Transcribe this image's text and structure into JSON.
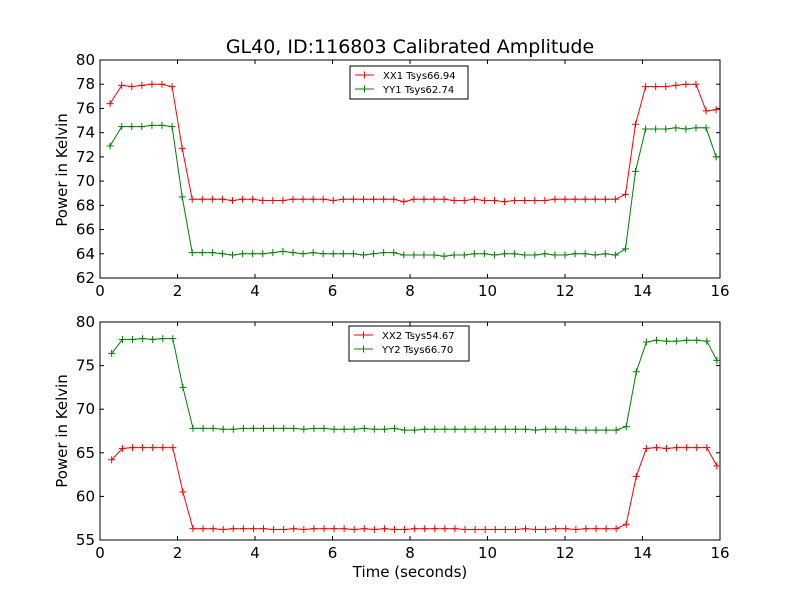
{
  "chart_data": [
    {
      "type": "line",
      "title": "GL40, ID:116803 Calibrated Amplitude",
      "xlabel": "",
      "ylabel": "Power in Kelvin",
      "xlim": [
        0,
        16
      ],
      "ylim": [
        62,
        80
      ],
      "xticks": [
        0,
        2,
        4,
        6,
        8,
        10,
        12,
        14,
        16
      ],
      "yticks": [
        62,
        64,
        66,
        68,
        70,
        72,
        74,
        76,
        78,
        80
      ],
      "grid": false,
      "legend": "top-center",
      "x": [
        0.26,
        0.56,
        0.82,
        1.08,
        1.34,
        1.6,
        1.86,
        2.12,
        2.38,
        2.64,
        2.9,
        3.16,
        3.42,
        3.68,
        3.94,
        4.2,
        4.46,
        4.72,
        4.98,
        5.24,
        5.5,
        5.76,
        6.02,
        6.28,
        6.54,
        6.8,
        7.06,
        7.32,
        7.58,
        7.84,
        8.1,
        8.36,
        8.62,
        8.88,
        9.14,
        9.4,
        9.66,
        9.92,
        10.18,
        10.44,
        10.7,
        10.96,
        11.22,
        11.48,
        11.74,
        12.0,
        12.26,
        12.52,
        12.78,
        13.04,
        13.3,
        13.56,
        13.82,
        14.08,
        14.34,
        14.6,
        14.86,
        15.12,
        15.38,
        15.64,
        15.9
      ],
      "series": [
        {
          "name": "XX1 Tsys66.94",
          "color": "#ff0000",
          "values": [
            76.4,
            77.9,
            77.8,
            77.9,
            78.0,
            78.0,
            77.8,
            72.7,
            68.5,
            68.5,
            68.5,
            68.5,
            68.4,
            68.5,
            68.5,
            68.4,
            68.4,
            68.4,
            68.5,
            68.5,
            68.5,
            68.5,
            68.4,
            68.5,
            68.5,
            68.5,
            68.5,
            68.5,
            68.5,
            68.3,
            68.5,
            68.5,
            68.5,
            68.5,
            68.4,
            68.4,
            68.5,
            68.4,
            68.4,
            68.3,
            68.4,
            68.4,
            68.4,
            68.4,
            68.5,
            68.5,
            68.5,
            68.5,
            68.5,
            68.5,
            68.5,
            68.9,
            74.7,
            77.8,
            77.8,
            77.8,
            77.9,
            78.0,
            78.0,
            75.8,
            75.9
          ],
          "x_override": [
            0.26,
            0.56,
            0.82,
            1.08,
            1.34,
            1.6,
            1.86,
            2.12,
            2.38,
            2.64,
            2.9,
            3.16,
            3.42,
            3.68,
            3.94,
            4.2,
            4.46,
            4.72,
            4.98,
            5.24,
            5.5,
            5.76,
            6.02,
            6.28,
            6.54,
            6.8,
            7.06,
            7.32,
            7.58,
            7.84,
            8.1,
            8.36,
            8.62,
            8.88,
            9.14,
            9.4,
            9.66,
            9.92,
            10.18,
            10.44,
            10.7,
            10.96,
            11.22,
            11.48,
            11.74,
            12.0,
            12.26,
            12.52,
            12.78,
            13.04,
            13.3,
            13.56,
            13.82,
            14.08,
            14.34,
            14.6,
            14.86,
            15.12,
            15.38,
            15.64,
            15.9
          ]
        },
        {
          "name": "YY1 Tsys62.74",
          "color": "#008000",
          "values": [
            72.9,
            74.5,
            74.5,
            74.5,
            74.6,
            74.6,
            74.5,
            68.7,
            64.1,
            64.1,
            64.1,
            64.0,
            63.9,
            64.0,
            64.0,
            64.0,
            64.1,
            64.2,
            64.1,
            64.0,
            64.1,
            64.0,
            64.0,
            64.0,
            64.0,
            63.9,
            64.0,
            64.1,
            64.1,
            63.9,
            63.9,
            63.9,
            63.9,
            63.8,
            63.9,
            63.9,
            64.0,
            64.0,
            63.9,
            64.0,
            64.0,
            63.9,
            63.9,
            64.0,
            63.9,
            63.9,
            64.0,
            64.0,
            63.9,
            64.0,
            63.9,
            64.4,
            70.8,
            74.3,
            74.3,
            74.3,
            74.4,
            74.3,
            74.4,
            74.4,
            72.0
          ]
        }
      ]
    },
    {
      "type": "line",
      "title": "",
      "xlabel": "Time (seconds)",
      "ylabel": "Power in Kelvin",
      "xlim": [
        0,
        16
      ],
      "ylim": [
        55,
        80
      ],
      "xticks": [
        0,
        2,
        4,
        6,
        8,
        10,
        12,
        14,
        16
      ],
      "yticks": [
        55,
        60,
        65,
        70,
        75,
        80
      ],
      "grid": false,
      "legend": "top-center",
      "x": [
        0.3,
        0.58,
        0.84,
        1.1,
        1.36,
        1.62,
        1.88,
        2.14,
        2.4,
        2.66,
        2.92,
        3.18,
        3.44,
        3.7,
        3.96,
        4.22,
        4.48,
        4.74,
        5.0,
        5.26,
        5.52,
        5.78,
        6.04,
        6.3,
        6.56,
        6.82,
        7.08,
        7.34,
        7.6,
        7.86,
        8.12,
        8.38,
        8.64,
        8.9,
        9.16,
        9.42,
        9.68,
        9.94,
        10.2,
        10.46,
        10.72,
        10.98,
        11.24,
        11.5,
        11.76,
        12.02,
        12.28,
        12.54,
        12.8,
        13.06,
        13.32,
        13.58,
        13.84,
        14.1,
        14.36,
        14.62,
        14.88,
        15.14,
        15.4,
        15.66,
        15.92
      ],
      "series": [
        {
          "name": "XX2 Tsys54.67",
          "color": "#ff0000",
          "values": [
            64.2,
            65.5,
            65.6,
            65.6,
            65.6,
            65.6,
            65.6,
            60.5,
            56.3,
            56.3,
            56.3,
            56.2,
            56.3,
            56.3,
            56.3,
            56.3,
            56.2,
            56.2,
            56.3,
            56.2,
            56.3,
            56.3,
            56.3,
            56.3,
            56.2,
            56.3,
            56.2,
            56.3,
            56.2,
            56.2,
            56.3,
            56.3,
            56.3,
            56.3,
            56.3,
            56.2,
            56.2,
            56.2,
            56.2,
            56.2,
            56.2,
            56.3,
            56.2,
            56.2,
            56.3,
            56.3,
            56.2,
            56.3,
            56.3,
            56.3,
            56.3,
            56.8,
            62.3,
            65.5,
            65.6,
            65.5,
            65.6,
            65.6,
            65.6,
            65.6,
            63.5
          ]
        },
        {
          "name": "YY2 Tsys66.70",
          "color": "#008000",
          "values": [
            76.4,
            78.0,
            78.0,
            78.1,
            78.0,
            78.1,
            78.1,
            72.5,
            67.8,
            67.8,
            67.8,
            67.7,
            67.7,
            67.8,
            67.8,
            67.8,
            67.8,
            67.8,
            67.8,
            67.7,
            67.8,
            67.8,
            67.7,
            67.7,
            67.7,
            67.8,
            67.7,
            67.7,
            67.8,
            67.6,
            67.6,
            67.7,
            67.7,
            67.7,
            67.7,
            67.7,
            67.7,
            67.7,
            67.7,
            67.7,
            67.7,
            67.7,
            67.6,
            67.7,
            67.7,
            67.7,
            67.6,
            67.6,
            67.6,
            67.6,
            67.6,
            68.0,
            74.3,
            77.7,
            77.9,
            77.8,
            77.8,
            77.9,
            77.9,
            77.8,
            75.6
          ]
        }
      ]
    }
  ]
}
